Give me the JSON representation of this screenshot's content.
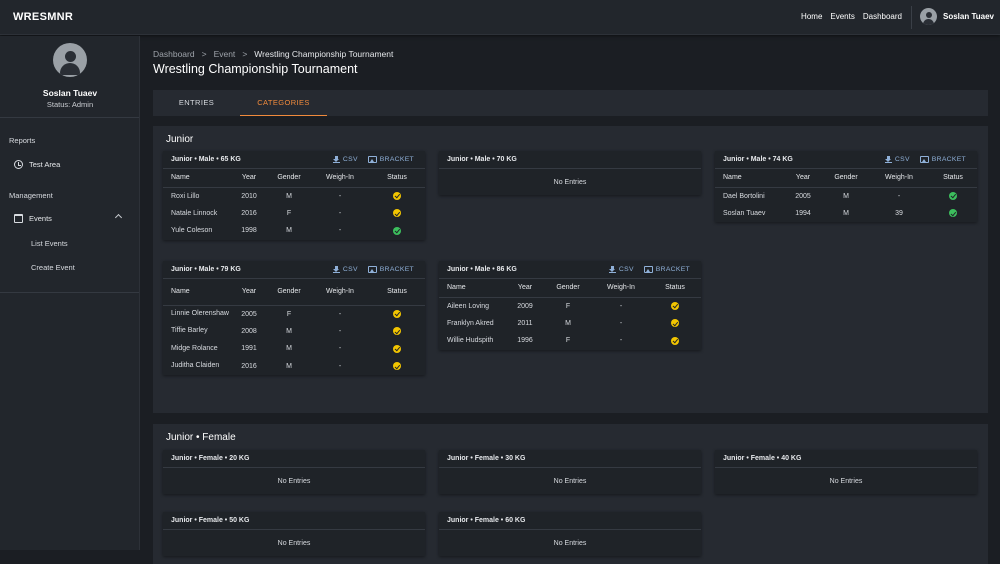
{
  "app": {
    "brand": "WRESMNR"
  },
  "topnav": {
    "home": "Home",
    "events": "Events",
    "dashboard": "Dashboard",
    "user_name": "Soslan Tuaev"
  },
  "sidebar": {
    "profile_name": "Soslan Tuaev",
    "profile_status": "Status: Admin",
    "reports_label": "Reports",
    "test_area": "Test Area",
    "management_label": "Management",
    "events": "Events",
    "list_events": "List Events",
    "create_event": "Create Event"
  },
  "breadcrumb": {
    "dashboard": "Dashboard",
    "sep": ">",
    "event": "Event",
    "current": "Wrestling Championship Tournament"
  },
  "page_title": "Wrestling Championship Tournament",
  "tabs": {
    "entries": "ENTRIES",
    "categories": "CATEGORIES",
    "active": "categories"
  },
  "labels": {
    "csv": "CSV",
    "bracket": "BRACKET",
    "no_entries": "No Entries"
  },
  "columns": {
    "name": "Name",
    "year": "Year",
    "gender": "Gender",
    "weigh_in": "Weigh-In",
    "status": "Status"
  },
  "colors": {
    "accent": "#f08a3c",
    "link": "#8fb0d8",
    "status_pending": "#f2c500",
    "status_ok": "#3cbf5d"
  },
  "groups": [
    {
      "title": "Junior",
      "categories": [
        {
          "title": "Junior • Male • 65 KG",
          "rows": [
            {
              "name": "Roxi Lillo",
              "year": "2010",
              "gender": "M",
              "weigh_in": "-",
              "status": "pending"
            },
            {
              "name": "Natale Linnock",
              "year": "2016",
              "gender": "F",
              "weigh_in": "-",
              "status": "pending"
            },
            {
              "name": "Yule Coleson",
              "year": "1998",
              "gender": "M",
              "weigh_in": "-",
              "status": "ok"
            }
          ]
        },
        {
          "title": "Junior • Male • 70 KG",
          "rows": []
        },
        {
          "title": "Junior • Male • 74 KG",
          "rows": [
            {
              "name": "Dael Bortolini",
              "year": "2005",
              "gender": "M",
              "weigh_in": "-",
              "status": "ok"
            },
            {
              "name": "Soslan Tuaev",
              "year": "1994",
              "gender": "M",
              "weigh_in": "39",
              "status": "ok"
            }
          ]
        },
        {
          "title": "Junior • Male • 79 KG",
          "rows": [
            {
              "name": "Linnie Olerenshaw",
              "year": "2005",
              "gender": "F",
              "weigh_in": "-",
              "status": "pending"
            },
            {
              "name": "Tiffie Barley",
              "year": "2008",
              "gender": "M",
              "weigh_in": "-",
              "status": "pending"
            },
            {
              "name": "Midge Rolance",
              "year": "1991",
              "gender": "M",
              "weigh_in": "-",
              "status": "pending"
            },
            {
              "name": "Juditha Claiden",
              "year": "2016",
              "gender": "M",
              "weigh_in": "-",
              "status": "pending"
            }
          ]
        },
        {
          "title": "Junior • Male • 86 KG",
          "rows": [
            {
              "name": "Aileen Loving",
              "year": "2009",
              "gender": "F",
              "weigh_in": "-",
              "status": "pending"
            },
            {
              "name": "Franklyn Akred",
              "year": "2011",
              "gender": "M",
              "weigh_in": "-",
              "status": "pending"
            },
            {
              "name": "Willie Hudspith",
              "year": "1996",
              "gender": "F",
              "weigh_in": "-",
              "status": "pending"
            }
          ]
        }
      ]
    },
    {
      "title": "Junior • Female",
      "categories": [
        {
          "title": "Junior • Female • 20 KG",
          "rows": []
        },
        {
          "title": "Junior • Female • 30 KG",
          "rows": []
        },
        {
          "title": "Junior • Female • 40 KG",
          "rows": []
        },
        {
          "title": "Junior • Female • 50 KG",
          "rows": []
        },
        {
          "title": "Junior • Female • 60 KG",
          "rows": []
        }
      ]
    }
  ]
}
